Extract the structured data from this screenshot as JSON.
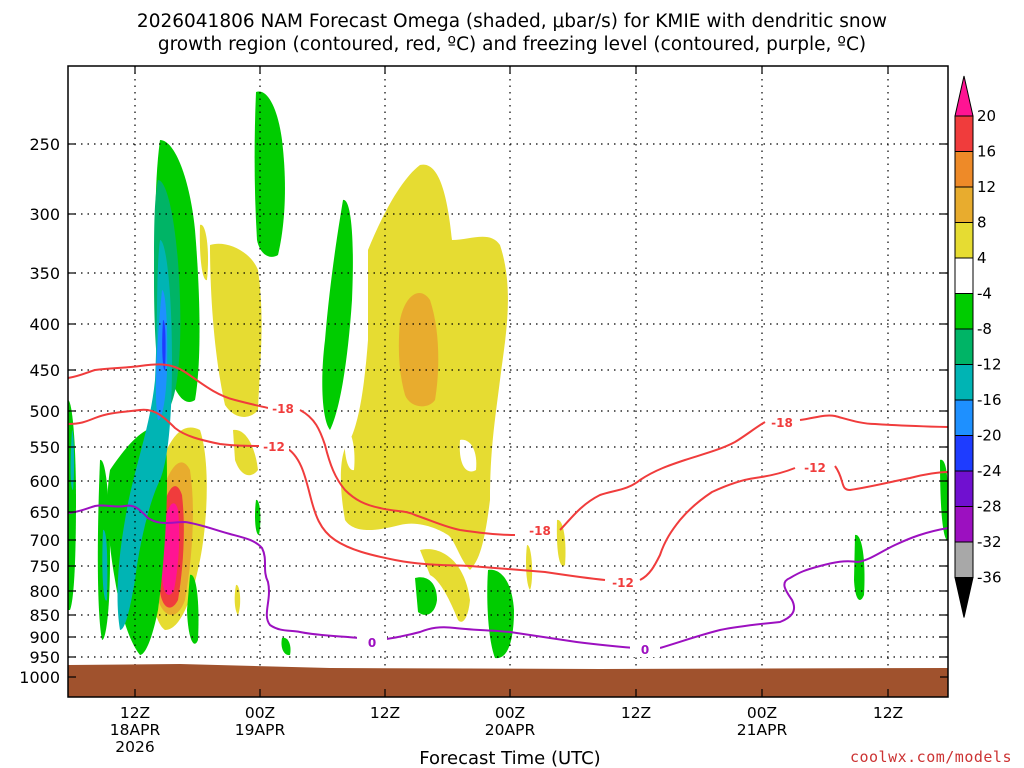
{
  "chart_data": {
    "type": "heatmap",
    "title_line1": "2026041806 NAM Forecast Omega (shaded, μbar/s) for KMIE with dendritic snow",
    "title_line2": "growth region (contoured, red, ºC) and freezing level (contoured, purple, ºC)",
    "xlabel": "Forecast Time (UTC)",
    "credit": "coolwx.com/models",
    "y_axis": {
      "scale": "pressure",
      "direction": "inverted",
      "ticks": [
        "250",
        "300",
        "350",
        "400",
        "450",
        "500",
        "550",
        "600",
        "650",
        "700",
        "750",
        "800",
        "850",
        "900",
        "950",
        "1000"
      ]
    },
    "x_axis": {
      "ticks": [
        {
          "l1": "12Z",
          "l2": "18APR",
          "l3": "2026"
        },
        {
          "l1": "00Z",
          "l2": "19APR",
          "l3": ""
        },
        {
          "l1": "12Z",
          "l2": "",
          "l3": ""
        },
        {
          "l1": "00Z",
          "l2": "20APR",
          "l3": ""
        },
        {
          "l1": "12Z",
          "l2": "",
          "l3": ""
        },
        {
          "l1": "00Z",
          "l2": "21APR",
          "l3": ""
        },
        {
          "l1": "12Z",
          "l2": "",
          "l3": ""
        }
      ]
    },
    "grid": true,
    "colorbar": {
      "placement": "right",
      "labels": [
        "20",
        "16",
        "12",
        "8",
        "4",
        "-4",
        "-8",
        "-12",
        "-16",
        "-20",
        "-24",
        "-28",
        "-32",
        "-36"
      ],
      "colors": [
        "#ff1493",
        "#f03c3c",
        "#ee8a28",
        "#e8ac2e",
        "#e6dc32",
        "#ffffff",
        "#00cc00",
        "#00b466",
        "#00b4b4",
        "#1e90ff",
        "#1e3cff",
        "#7010d0",
        "#9c10c0",
        "#a8a8a8",
        "#000000"
      ]
    },
    "contour_labels": [
      {
        "text": "-18",
        "color": "#f03c3c"
      },
      {
        "text": "-12",
        "color": "#f03c3c"
      },
      {
        "text": "-18",
        "color": "#f03c3c"
      },
      {
        "text": "-12",
        "color": "#f03c3c"
      },
      {
        "text": "-18",
        "color": "#f03c3c"
      },
      {
        "text": "-12",
        "color": "#f03c3c"
      },
      {
        "text": "0",
        "color": "#9c10c0"
      },
      {
        "text": "0",
        "color": "#9c10c0"
      }
    ],
    "colors": {
      "terrain": "#a0522d",
      "snow_growth_contour": "#f03c3c",
      "freezing_level_contour": "#9c10c0"
    }
  }
}
